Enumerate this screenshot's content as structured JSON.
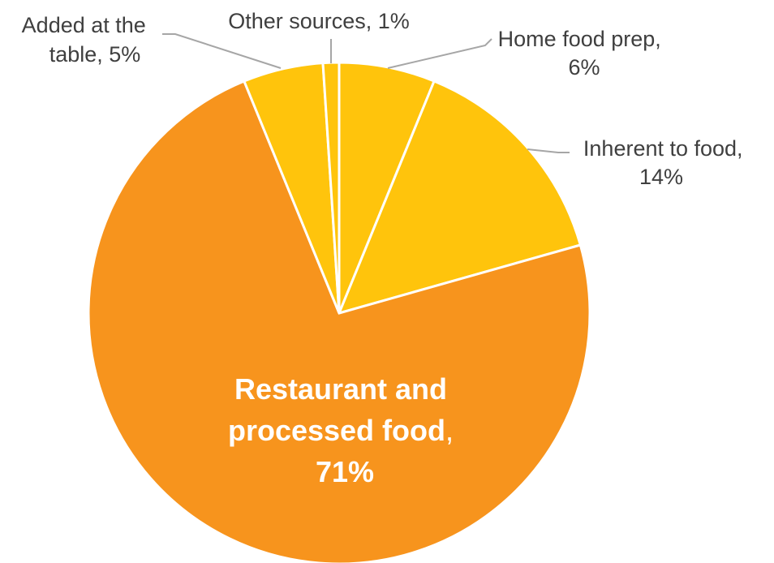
{
  "chart_data": {
    "type": "pie",
    "title": "",
    "slices": [
      {
        "label": "Home food prep",
        "value": 6,
        "value_label": "6%",
        "color": "#FFC40C"
      },
      {
        "label": "Inherent to food",
        "value": 14,
        "value_label": "14%",
        "color": "#FFC40C"
      },
      {
        "label": "Restaurant and processed food",
        "value": 71,
        "value_label": "71%",
        "color": "#F7941D"
      },
      {
        "label": "Added at the table",
        "value": 5,
        "value_label": "5%",
        "color": "#FFC40C"
      },
      {
        "label": "Other sources",
        "value": 1,
        "value_label": "1%",
        "color": "#FFC40C"
      }
    ],
    "legend": "none",
    "start_angle_deg": 0,
    "direction": "clockwise"
  },
  "labels": {
    "home_food_prep": {
      "line1": "Home food prep,",
      "line2": "6%"
    },
    "inherent_to_food": {
      "line1": "Inherent to food,",
      "line2": "14%"
    },
    "restaurant_processed": {
      "line1": "Restaurant and",
      "line2a": "processed food",
      "line2b": ",",
      "line3": "71%"
    },
    "added_at_table": {
      "line1": "Added at the",
      "line2": "table, 5%"
    },
    "other_sources": {
      "line1": "Other sources, 1%"
    }
  }
}
